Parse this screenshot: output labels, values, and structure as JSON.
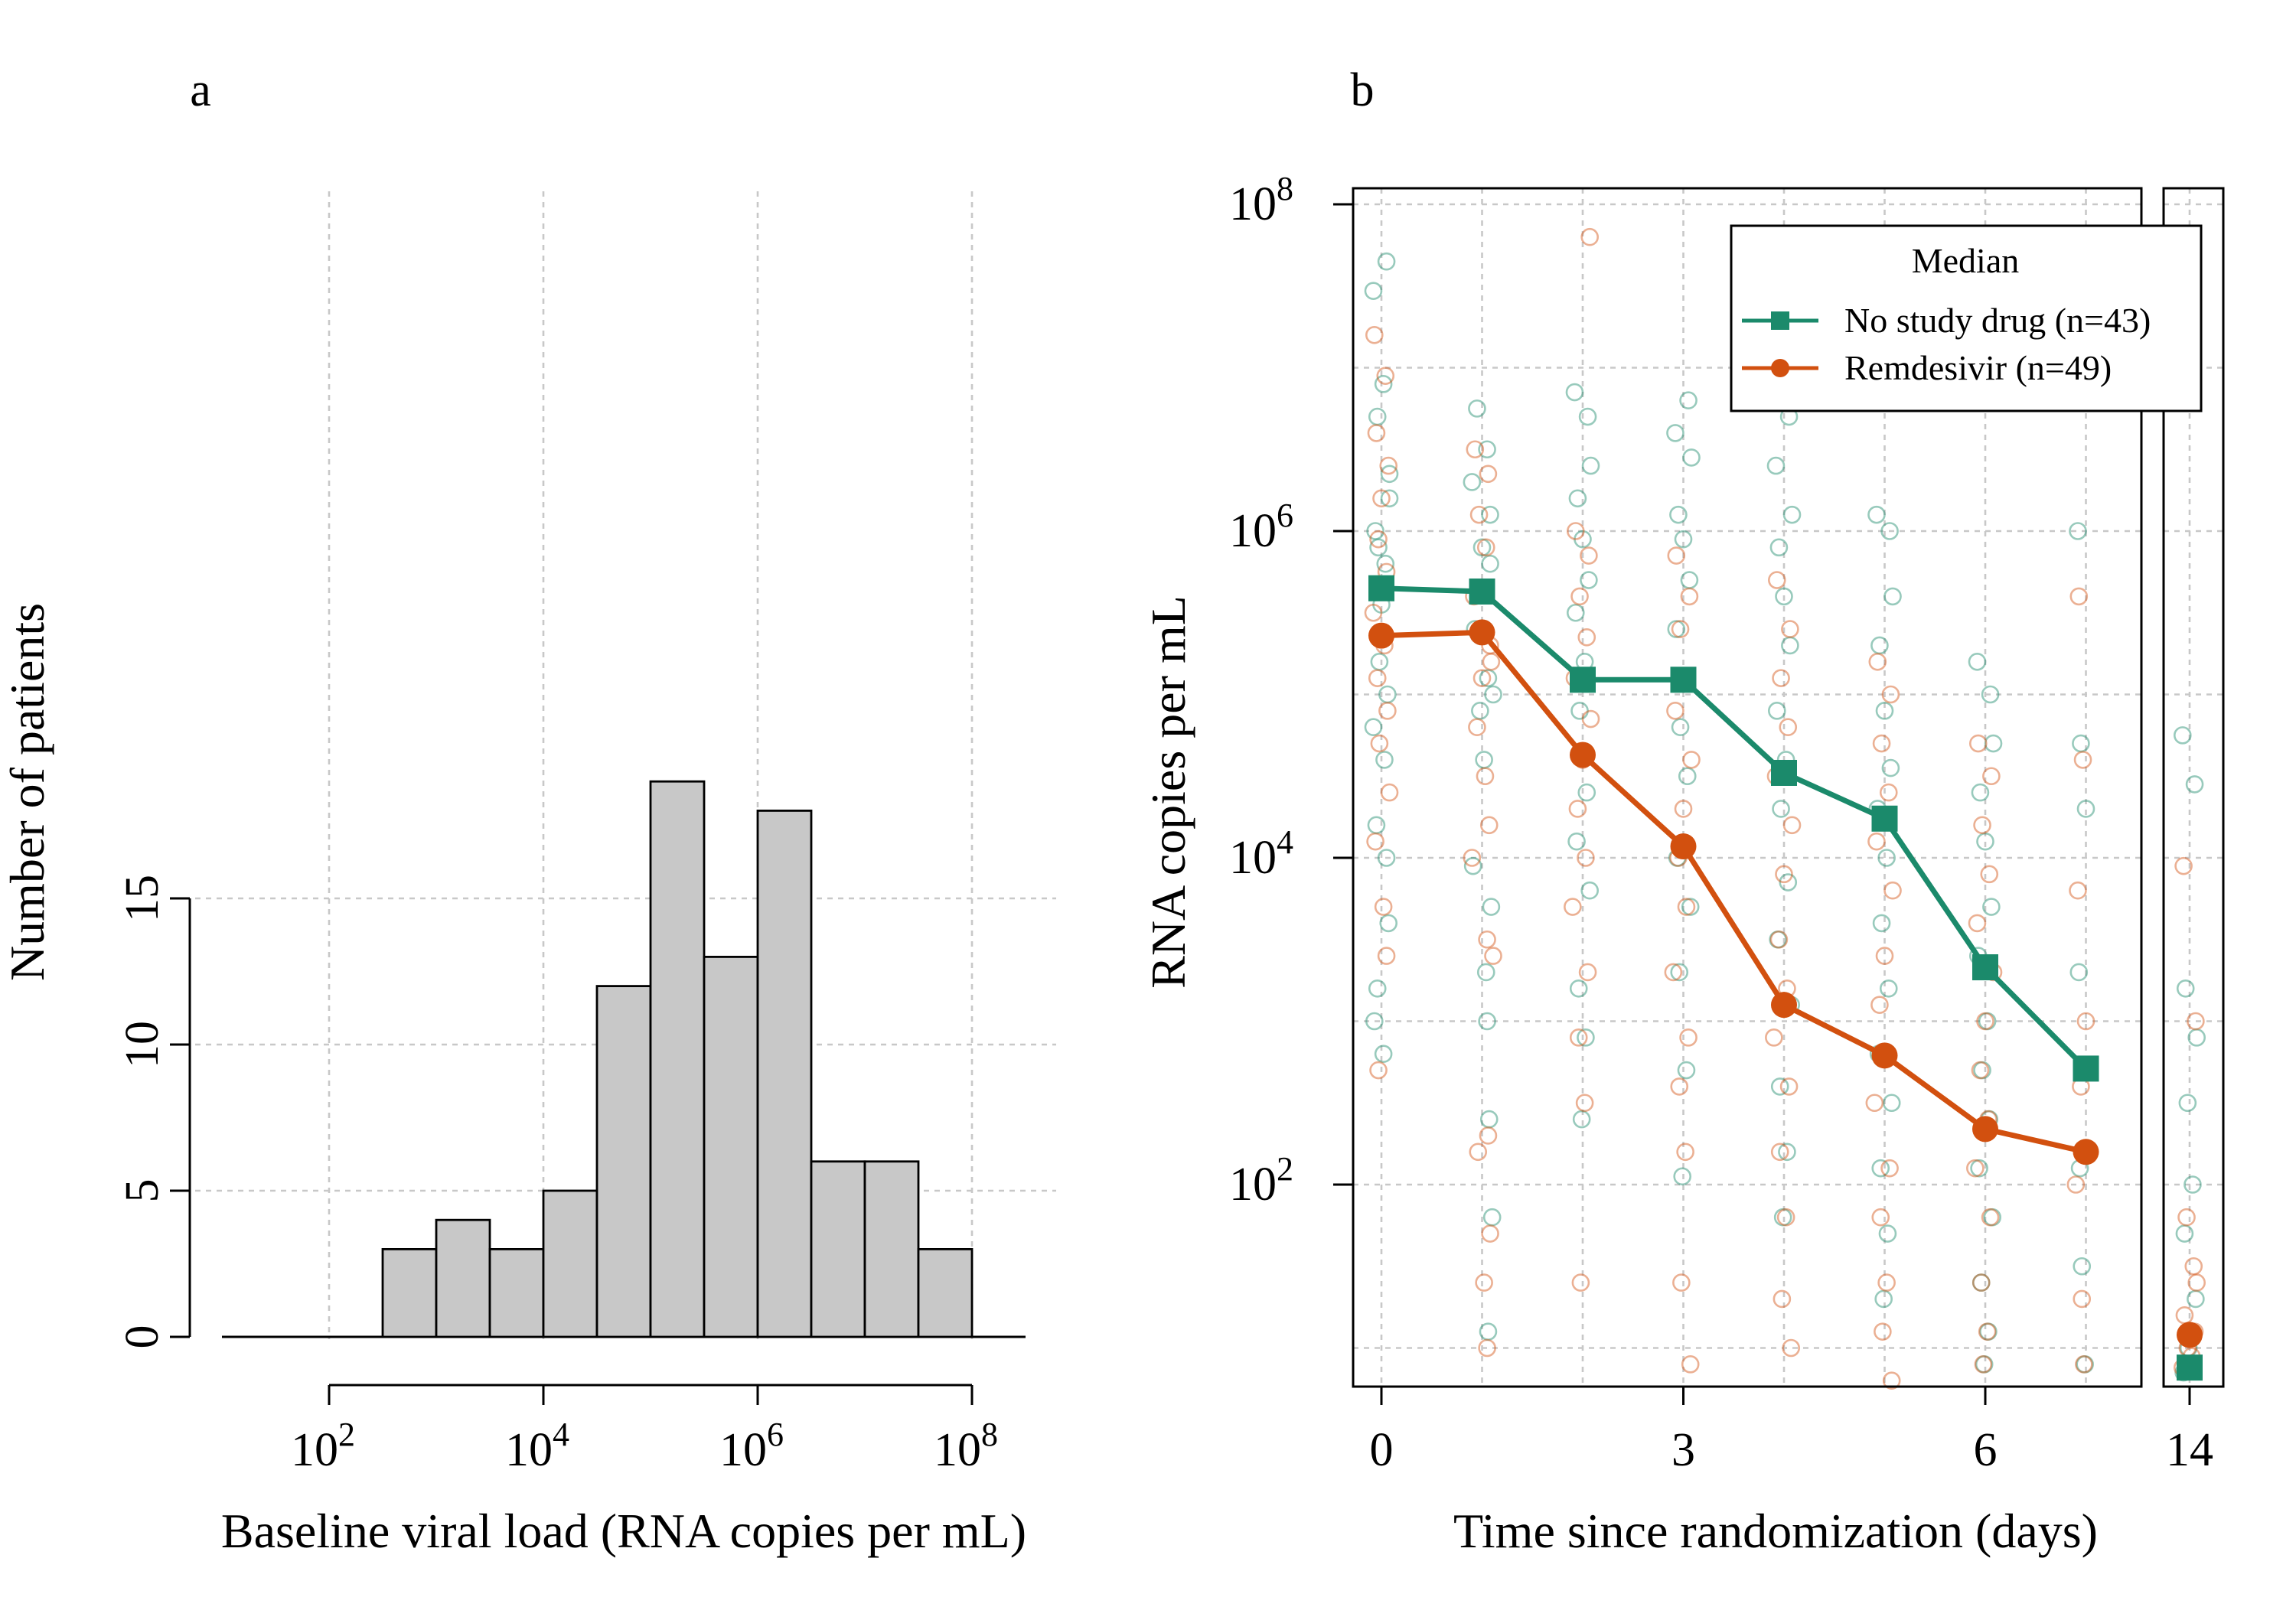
{
  "chart_data": [
    {
      "type": "bar",
      "panel_label": "a",
      "xlabel": "Baseline viral load (RNA copies per mL)",
      "ylabel": "Number of patients",
      "x_scale": "log10",
      "xlim_log10": [
        0.9,
        7.5
      ],
      "ylim": [
        0,
        19.5
      ],
      "x_ticks": [
        {
          "log10": 2,
          "base": "10",
          "exp": "2"
        },
        {
          "log10": 4,
          "base": "10",
          "exp": "4"
        },
        {
          "log10": 6,
          "base": "10",
          "exp": "6"
        },
        {
          "log10": 8,
          "base": "10",
          "exp": "8"
        }
      ],
      "y_ticks": [
        0,
        5,
        10,
        15
      ],
      "grid": true,
      "bin_width_log10": 0.5,
      "bins": [
        {
          "from_log10": 2.5,
          "to_log10": 3.0,
          "count": 3
        },
        {
          "from_log10": 3.0,
          "to_log10": 3.5,
          "count": 4
        },
        {
          "from_log10": 3.5,
          "to_log10": 4.0,
          "count": 3
        },
        {
          "from_log10": 4.0,
          "to_log10": 4.5,
          "count": 5
        },
        {
          "from_log10": 4.5,
          "to_log10": 5.0,
          "count": 12
        },
        {
          "from_log10": 5.0,
          "to_log10": 5.5,
          "count": 19
        },
        {
          "from_log10": 5.5,
          "to_log10": 6.0,
          "count": 13
        },
        {
          "from_log10": 6.0,
          "to_log10": 6.5,
          "count": 18
        },
        {
          "from_log10": 6.5,
          "to_log10": 7.0,
          "count": 6
        },
        {
          "from_log10": 7.0,
          "to_log10": 7.5,
          "count": 6
        },
        {
          "from_log10": 7.5,
          "to_log10": 8.0,
          "count": 3
        }
      ]
    },
    {
      "type": "line",
      "panel_label": "b",
      "xlabel": "Time since randomization (days)",
      "ylabel": "RNA copies per mL",
      "y_scale": "log10",
      "ylim_log10": [
        0.6,
        8.1
      ],
      "x_ticks": [
        0,
        3,
        6,
        14
      ],
      "y_ticks": [
        {
          "log10": 2,
          "base": "10",
          "exp": "2"
        },
        {
          "log10": 4,
          "base": "10",
          "exp": "4"
        },
        {
          "log10": 6,
          "base": "10",
          "exp": "6"
        },
        {
          "log10": 8,
          "base": "10",
          "exp": "8"
        }
      ],
      "grid": true,
      "legend": {
        "title": "Median",
        "placement": "top-right",
        "entries": [
          {
            "label": "No study drug (n=43)",
            "color": "#1b8a6b",
            "marker": "square"
          },
          {
            "label": "Remdesivir (n=49)",
            "color": "#d2500f",
            "marker": "circle"
          }
        ]
      },
      "series": [
        {
          "name": "No study drug (n=43)",
          "color": "#1b8a6b",
          "marker": "square",
          "x": [
            0,
            1,
            2,
            3,
            4,
            5,
            6,
            7,
            14
          ],
          "y_log10": [
            5.65,
            5.63,
            5.09,
            5.09,
            4.52,
            4.24,
            3.33,
            2.71,
            0.88
          ]
        },
        {
          "name": "Remdesivir (n=49)",
          "color": "#d2500f",
          "marker": "circle",
          "x": [
            0,
            1,
            2,
            3,
            4,
            5,
            6,
            7,
            14
          ],
          "y_log10": [
            5.36,
            5.38,
            4.63,
            4.07,
            3.1,
            2.79,
            2.34,
            2.2,
            1.08
          ]
        }
      ],
      "scatter_points_note": "",
      "individual_points": {
        "no_study_drug": [
          [
            -0.08,
            7.47
          ],
          [
            0.05,
            7.65
          ],
          [
            0.02,
            6.9
          ],
          [
            -0.04,
            6.7
          ],
          [
            0.08,
            6.35
          ],
          [
            -0.06,
            6.0
          ],
          [
            0.04,
            5.8
          ],
          [
            0.0,
            5.55
          ],
          [
            -0.02,
            5.2
          ],
          [
            0.06,
            5.0
          ],
          [
            -0.08,
            4.8
          ],
          [
            0.03,
            4.6
          ],
          [
            -0.05,
            4.2
          ],
          [
            0.07,
            3.6
          ],
          [
            -0.04,
            3.2
          ],
          [
            0.02,
            2.8
          ],
          [
            -0.07,
            3.0
          ],
          [
            0.05,
            4.0
          ],
          [
            -0.03,
            5.9
          ],
          [
            0.08,
            6.2
          ],
          [
            0.95,
            6.75
          ],
          [
            1.05,
            6.5
          ],
          [
            0.9,
            6.3
          ],
          [
            1.08,
            6.1
          ],
          [
            1.0,
            5.9
          ],
          [
            0.93,
            5.4
          ],
          [
            1.06,
            5.1
          ],
          [
            0.98,
            4.9
          ],
          [
            1.02,
            4.6
          ],
          [
            0.91,
            3.95
          ],
          [
            1.04,
            3.3
          ],
          [
            1.92,
            6.85
          ],
          [
            2.05,
            6.7
          ],
          [
            2.08,
            6.4
          ],
          [
            1.95,
            6.2
          ],
          [
            2.0,
            5.95
          ],
          [
            2.06,
            5.7
          ],
          [
            1.93,
            5.5
          ],
          [
            2.02,
            5.2
          ],
          [
            1.97,
            4.9
          ],
          [
            2.04,
            4.4
          ],
          [
            1.94,
            4.1
          ],
          [
            2.07,
            3.8
          ],
          [
            1.96,
            3.2
          ],
          [
            2.03,
            2.9
          ],
          [
            1.99,
            2.4
          ],
          [
            2.92,
            6.6
          ],
          [
            3.05,
            6.8
          ],
          [
            3.08,
            6.45
          ],
          [
            2.95,
            6.1
          ],
          [
            3.0,
            5.95
          ],
          [
            3.06,
            5.7
          ],
          [
            2.93,
            5.4
          ],
          [
            3.02,
            5.1
          ],
          [
            2.97,
            4.8
          ],
          [
            3.04,
            4.5
          ],
          [
            2.94,
            4.0
          ],
          [
            3.07,
            3.7
          ],
          [
            2.96,
            3.3
          ],
          [
            3.03,
            2.7
          ],
          [
            2.99,
            2.05
          ],
          [
            3.92,
            6.4
          ],
          [
            4.05,
            6.7
          ],
          [
            4.08,
            6.1
          ],
          [
            3.95,
            5.9
          ],
          [
            4.0,
            5.6
          ],
          [
            4.06,
            5.3
          ],
          [
            3.93,
            4.9
          ],
          [
            4.02,
            4.6
          ],
          [
            3.97,
            4.3
          ],
          [
            4.04,
            3.85
          ],
          [
            3.94,
            3.5
          ],
          [
            4.07,
            3.1
          ],
          [
            3.96,
            2.6
          ],
          [
            4.03,
            2.2
          ],
          [
            3.99,
            1.8
          ],
          [
            4.92,
            6.1
          ],
          [
            5.05,
            6.0
          ],
          [
            5.08,
            5.6
          ],
          [
            4.95,
            5.3
          ],
          [
            5.0,
            4.9
          ],
          [
            5.06,
            4.55
          ],
          [
            4.93,
            4.3
          ],
          [
            5.02,
            4.0
          ],
          [
            4.97,
            3.6
          ],
          [
            5.04,
            3.2
          ],
          [
            4.94,
            2.8
          ],
          [
            5.07,
            2.5
          ],
          [
            4.96,
            2.1
          ],
          [
            5.03,
            1.7
          ],
          [
            4.99,
            1.3
          ],
          [
            5.92,
            5.2
          ],
          [
            6.05,
            5.0
          ],
          [
            6.08,
            4.7
          ],
          [
            5.95,
            4.4
          ],
          [
            6.0,
            4.1
          ],
          [
            6.06,
            3.7
          ],
          [
            5.93,
            3.4
          ],
          [
            6.02,
            3.0
          ],
          [
            5.97,
            2.7
          ],
          [
            6.04,
            2.4
          ],
          [
            5.94,
            2.1
          ],
          [
            6.07,
            1.8
          ],
          [
            5.96,
            1.4
          ],
          [
            6.03,
            1.1
          ],
          [
            5.99,
            0.9
          ],
          [
            6.92,
            6.0
          ],
          [
            7.05,
            5.8
          ],
          [
            7.08,
            5.0
          ],
          [
            6.95,
            4.7
          ],
          [
            7.0,
            4.3
          ],
          [
            7.06,
            3.7
          ],
          [
            6.93,
            3.3
          ],
          [
            7.02,
            3.0
          ],
          [
            6.97,
            2.7
          ],
          [
            7.04,
            2.4
          ],
          [
            6.94,
            2.1
          ],
          [
            7.07,
            1.8
          ],
          [
            6.96,
            1.5
          ],
          [
            7.03,
            1.1
          ],
          [
            6.99,
            0.9
          ],
          [
            13.93,
            4.75
          ],
          [
            14.05,
            4.45
          ],
          [
            13.96,
            3.2
          ],
          [
            14.07,
            2.9
          ],
          [
            13.98,
            2.5
          ],
          [
            14.03,
            2.0
          ],
          [
            13.95,
            1.7
          ],
          [
            14.06,
            1.3
          ],
          [
            13.99,
            1.0
          ],
          [
            14.02,
            0.9
          ],
          [
            13.94,
            0.85
          ]
        ],
        "remdesivir": [
          [
            -0.07,
            7.2
          ],
          [
            0.04,
            6.95
          ],
          [
            -0.05,
            6.6
          ],
          [
            0.07,
            6.4
          ],
          [
            0.0,
            6.2
          ],
          [
            -0.03,
            5.95
          ],
          [
            0.05,
            5.75
          ],
          [
            -0.08,
            5.5
          ],
          [
            0.03,
            5.3
          ],
          [
            -0.04,
            5.1
          ],
          [
            0.06,
            4.9
          ],
          [
            -0.02,
            4.7
          ],
          [
            0.08,
            4.4
          ],
          [
            -0.06,
            4.1
          ],
          [
            0.02,
            3.7
          ],
          [
            -0.03,
            2.7
          ],
          [
            0.05,
            3.4
          ],
          [
            0.93,
            6.5
          ],
          [
            1.06,
            6.35
          ],
          [
            0.97,
            6.1
          ],
          [
            1.04,
            5.9
          ],
          [
            0.92,
            5.6
          ],
          [
            1.08,
            5.3
          ],
          [
            1.0,
            5.1
          ],
          [
            0.95,
            4.8
          ],
          [
            1.03,
            4.5
          ],
          [
            0.9,
            4.0
          ],
          [
            1.05,
            3.5
          ],
          [
            0.96,
            2.2
          ],
          [
            1.02,
            1.4
          ],
          [
            1.93,
            6.0
          ],
          [
            2.06,
            5.85
          ],
          [
            1.97,
            5.6
          ],
          [
            2.04,
            5.35
          ],
          [
            1.92,
            5.1
          ],
          [
            2.08,
            4.85
          ],
          [
            2.0,
            4.6
          ],
          [
            1.95,
            4.3
          ],
          [
            2.03,
            4.0
          ],
          [
            1.9,
            3.7
          ],
          [
            2.05,
            3.3
          ],
          [
            1.96,
            2.9
          ],
          [
            2.02,
            2.5
          ],
          [
            1.98,
            1.4
          ],
          [
            2.07,
            7.8
          ],
          [
            2.93,
            5.85
          ],
          [
            3.06,
            5.6
          ],
          [
            2.97,
            5.4
          ],
          [
            3.04,
            5.1
          ],
          [
            2.92,
            4.9
          ],
          [
            3.08,
            4.6
          ],
          [
            3.0,
            4.3
          ],
          [
            2.95,
            4.0
          ],
          [
            3.03,
            3.7
          ],
          [
            2.9,
            3.3
          ],
          [
            3.05,
            2.9
          ],
          [
            2.96,
            2.6
          ],
          [
            3.02,
            2.2
          ],
          [
            2.98,
            1.4
          ],
          [
            3.07,
            0.9
          ],
          [
            3.93,
            5.7
          ],
          [
            4.06,
            5.4
          ],
          [
            3.97,
            5.1
          ],
          [
            4.04,
            4.8
          ],
          [
            3.92,
            4.5
          ],
          [
            4.08,
            4.2
          ],
          [
            4.0,
            3.9
          ],
          [
            3.95,
            3.5
          ],
          [
            4.03,
            3.2
          ],
          [
            3.9,
            2.9
          ],
          [
            4.05,
            2.6
          ],
          [
            3.96,
            2.2
          ],
          [
            4.02,
            1.8
          ],
          [
            3.98,
            1.3
          ],
          [
            4.07,
            1.0
          ],
          [
            4.93,
            5.2
          ],
          [
            5.06,
            5.0
          ],
          [
            4.97,
            4.7
          ],
          [
            5.04,
            4.4
          ],
          [
            4.92,
            4.1
          ],
          [
            5.08,
            3.8
          ],
          [
            5.0,
            3.4
          ],
          [
            4.95,
            3.1
          ],
          [
            5.03,
            2.8
          ],
          [
            4.9,
            2.5
          ],
          [
            5.05,
            2.1
          ],
          [
            4.96,
            1.8
          ],
          [
            5.02,
            1.4
          ],
          [
            4.98,
            1.1
          ],
          [
            5.07,
            0.8
          ],
          [
            5.93,
            4.7
          ],
          [
            6.06,
            4.5
          ],
          [
            5.97,
            4.2
          ],
          [
            6.04,
            3.9
          ],
          [
            5.92,
            3.6
          ],
          [
            6.08,
            3.3
          ],
          [
            6.0,
            3.0
          ],
          [
            5.95,
            2.7
          ],
          [
            6.03,
            2.4
          ],
          [
            5.9,
            2.1
          ],
          [
            6.05,
            1.8
          ],
          [
            5.96,
            1.4
          ],
          [
            6.02,
            1.1
          ],
          [
            5.98,
            0.9
          ],
          [
            6.93,
            5.6
          ],
          [
            7.06,
            5.2
          ],
          [
            6.97,
            4.6
          ],
          [
            7.04,
            4.2
          ],
          [
            6.92,
            3.8
          ],
          [
            7.08,
            3.4
          ],
          [
            7.0,
            3.0
          ],
          [
            6.95,
            2.6
          ],
          [
            7.03,
            2.3
          ],
          [
            6.9,
            2.0
          ],
          [
            7.05,
            1.7
          ],
          [
            6.96,
            1.3
          ],
          [
            7.02,
            1.0
          ],
          [
            6.98,
            0.9
          ],
          [
            13.94,
            3.95
          ],
          [
            14.06,
            3.0
          ],
          [
            13.97,
            1.8
          ],
          [
            14.04,
            1.5
          ],
          [
            13.95,
            1.2
          ],
          [
            14.07,
            1.4
          ],
          [
            13.98,
            1.0
          ],
          [
            14.02,
            0.95
          ],
          [
            13.93,
            0.88
          ],
          [
            14.05,
            1.1
          ]
        ]
      }
    }
  ]
}
